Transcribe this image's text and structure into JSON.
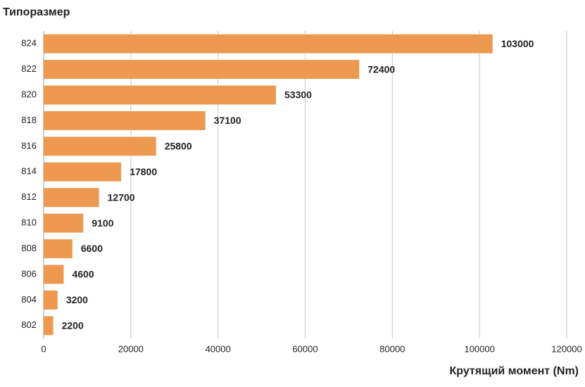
{
  "chart_data": {
    "type": "hbar",
    "y_axis_title": "Типоразмер",
    "x_axis_title": "Крутящий момент (Nm)",
    "categories": [
      "824",
      "822",
      "820",
      "818",
      "816",
      "814",
      "812",
      "810",
      "808",
      "806",
      "804",
      "802"
    ],
    "values": [
      103000,
      72400,
      53300,
      37100,
      25800,
      17800,
      12700,
      9100,
      6600,
      4600,
      3200,
      2200
    ],
    "color": "#ed9a50",
    "xlim": [
      0,
      120000
    ],
    "xticks": [
      0,
      20000,
      40000,
      60000,
      80000,
      100000,
      120000
    ],
    "grid": true
  }
}
